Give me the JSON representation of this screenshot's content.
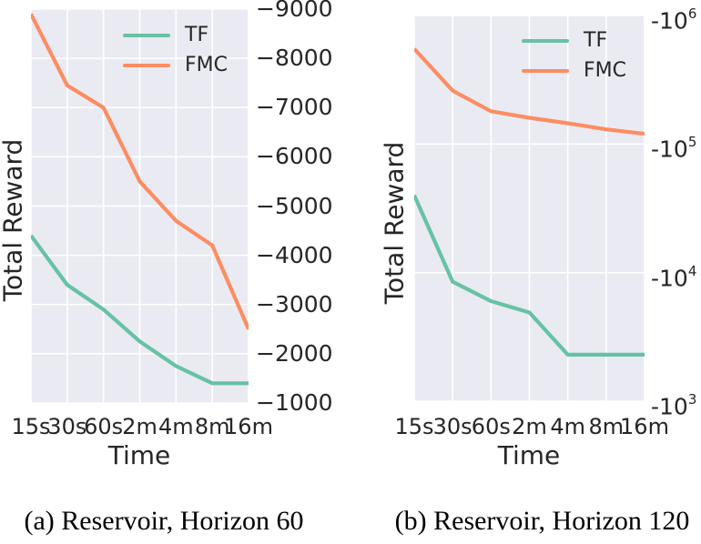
{
  "colors": {
    "tf": "#66c2a5",
    "fmc": "#fc8d62",
    "plot_bg": "#eaeaf2",
    "grid": "#ffffff",
    "text": "#262626",
    "caption": "#000000"
  },
  "chart_data": [
    {
      "type": "line",
      "caption": "(a) Reservoir, Horizon 60",
      "xlabel": "Time",
      "ylabel": "Total Reward",
      "categories": [
        "15s",
        "30s",
        "60s",
        "2m",
        "4m",
        "8m",
        "16m"
      ],
      "series": [
        {
          "name": "TF",
          "color_key": "tf",
          "values": [
            -4400,
            -3400,
            -2900,
            -2250,
            -1750,
            -1400,
            -1400
          ]
        },
        {
          "name": "FMC",
          "color_key": "fmc",
          "values": [
            -8900,
            -7450,
            -7000,
            -5500,
            -4700,
            -4200,
            -2500
          ]
        }
      ],
      "y_scale": "linear",
      "y_axis_side": "right",
      "y_top": -9000,
      "y_bottom": -1000,
      "y_ticks": [
        {
          "text": "−9000",
          "value": -9000
        },
        {
          "text": "−8000",
          "value": -8000
        },
        {
          "text": "−7000",
          "value": -7000
        },
        {
          "text": "−6000",
          "value": -6000
        },
        {
          "text": "−5000",
          "value": -5000
        },
        {
          "text": "−4000",
          "value": -4000
        },
        {
          "text": "−3000",
          "value": -3000
        },
        {
          "text": "−2000",
          "value": -2000
        },
        {
          "text": "−1000",
          "value": -1000
        }
      ],
      "grid": true,
      "legend_position": "upper center-right inside"
    },
    {
      "type": "line",
      "caption": "(b) Reservoir, Horizon 120",
      "xlabel": "Time",
      "ylabel": "Total Reward",
      "categories": [
        "15s",
        "30s",
        "60s",
        "2m",
        "4m",
        "8m",
        "16m"
      ],
      "series": [
        {
          "name": "TF",
          "color_key": "tf",
          "values": [
            -40000,
            -8500,
            -6000,
            -4900,
            -2300,
            -2300,
            -2300
          ]
        },
        {
          "name": "FMC",
          "color_key": "fmc",
          "values": [
            -550000,
            -260000,
            -180000,
            -160000,
            -145000,
            -130000,
            -120000
          ]
        }
      ],
      "y_scale": "negative_log10",
      "y_axis_side": "right",
      "y_top_exponent": 6,
      "y_bottom_exponent": 3,
      "y_ticks": [
        {
          "base": "-10",
          "exp": "6",
          "value": -1000000
        },
        {
          "base": "-10",
          "exp": "5",
          "value": -100000
        },
        {
          "base": "-10",
          "exp": "4",
          "value": -10000
        },
        {
          "base": "-10",
          "exp": "3",
          "value": -1000
        }
      ],
      "grid": true,
      "legend_position": "upper center-right inside"
    }
  ]
}
